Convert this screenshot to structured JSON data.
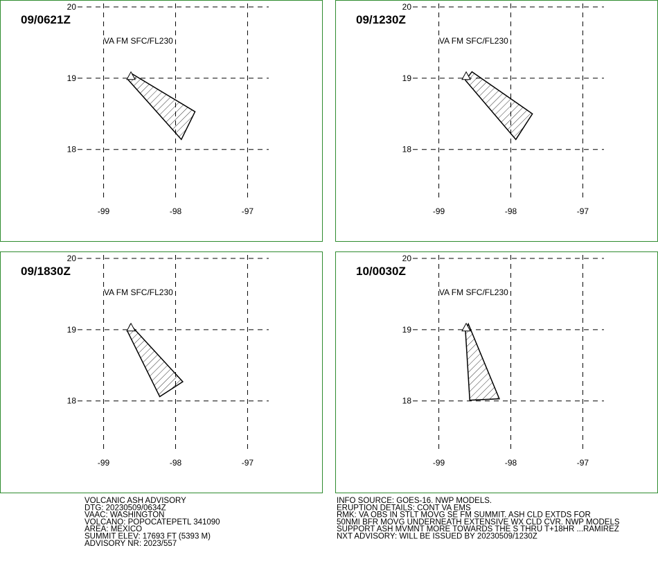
{
  "chart_data": [
    {
      "type": "polygon",
      "title": "09/0621Z",
      "subtitle": "VA FM SFC/FL230",
      "x": [
        -98.62,
        -97.73,
        -97.92,
        -98.67
      ],
      "y": [
        19.07,
        18.53,
        18.14,
        18.99
      ],
      "volcano": {
        "x": -98.62,
        "y": 19.02
      },
      "xlim": [
        -99.4,
        -96.6
      ],
      "ylim": [
        17.2,
        20
      ],
      "xticks": [
        -99,
        -98,
        -97
      ],
      "yticks": [
        18,
        19,
        20
      ],
      "grid": true,
      "color": "#000000"
    },
    {
      "type": "polygon",
      "title": "09/1230Z",
      "subtitle": "VA FM SFC/FL230",
      "x": [
        -98.54,
        -97.7,
        -97.93,
        -98.63
      ],
      "y": [
        19.09,
        18.5,
        18.14,
        18.97
      ],
      "volcano": {
        "x": -98.62,
        "y": 19.02
      },
      "xlim": [
        -99.4,
        -96.6
      ],
      "ylim": [
        17.2,
        20
      ],
      "xticks": [
        -99,
        -98,
        -97
      ],
      "yticks": [
        18,
        19,
        20
      ],
      "grid": true,
      "color": "#000000"
    },
    {
      "type": "polygon",
      "title": "09/1830Z",
      "subtitle": "VA FM SFC/FL230",
      "x": [
        -98.63,
        -97.9,
        -98.22,
        -98.67
      ],
      "y": [
        19.07,
        18.27,
        18.06,
        18.98
      ],
      "volcano": {
        "x": -98.62,
        "y": 19.02
      },
      "xlim": [
        -99.4,
        -96.6
      ],
      "ylim": [
        17.2,
        20
      ],
      "xticks": [
        -99,
        -98,
        -97
      ],
      "yticks": [
        18,
        19,
        20
      ],
      "grid": true,
      "color": "#000000"
    },
    {
      "type": "polygon",
      "title": "10/0030Z",
      "subtitle": "VA FM SFC/FL230",
      "x": [
        -98.59,
        -98.16,
        -98.57,
        -98.63
      ],
      "y": [
        19.08,
        18.03,
        18.01,
        18.98
      ],
      "volcano": {
        "x": -98.62,
        "y": 19.02
      },
      "xlim": [
        -99.4,
        -96.6
      ],
      "ylim": [
        17.2,
        20
      ],
      "xticks": [
        -99,
        -98,
        -97
      ],
      "yticks": [
        18,
        19,
        20
      ],
      "grid": true,
      "color": "#000000"
    }
  ],
  "advisory": {
    "left": [
      "VOLCANIC ASH ADVISORY",
      "DTG: 20230509/0634Z",
      "VAAC: WASHINGTON",
      "VOLCANO: POPOCATEPETL 341090",
      "AREA: MEXICO",
      "SUMMIT ELEV: 17693 FT (5393 M)",
      "ADVISORY NR: 2023/557"
    ],
    "right": [
      "INFO SOURCE: GOES-16. NWP MODELS.",
      "ERUPTION DETAILS: CONT VA EMS",
      "RMK: VA OBS IN STLT MOVG SE FM SUMMIT. ASH CLD EXTDS FOR",
      "50NMI BFR MOVG UNDERNEATH EXTENSIVE WX CLD CVR. NWP MODELS",
      "SUPPORT ASH MVMNT MORE TOWARDS THE S THRU T+18HR ...RAMIREZ",
      "NXT ADVISORY: WILL BE ISSUED BY 20230509/1230Z"
    ]
  }
}
